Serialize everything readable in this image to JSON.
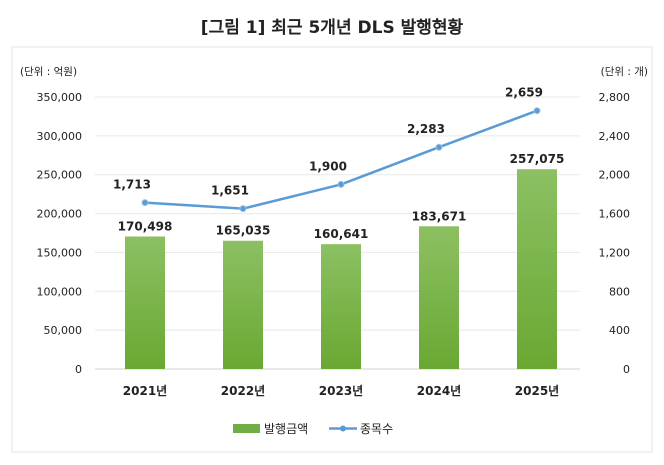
{
  "chart_data": {
    "type": "bar+line",
    "title": "[그림 1] 최근 5개년 DLS 발행현황",
    "left_unit": "(단위 : 억원)",
    "right_unit": "(단위 : 개)",
    "categories": [
      "2021년",
      "2022년",
      "2023년",
      "2024년",
      "2025년"
    ],
    "left_axis": {
      "range": [
        0,
        350000
      ],
      "ticks": [
        "0",
        "50,000",
        "100,000",
        "150,000",
        "200,000",
        "250,000",
        "300,000",
        "350,000"
      ],
      "tick_values": [
        0,
        50000,
        100000,
        150000,
        200000,
        250000,
        300000,
        350000
      ]
    },
    "right_axis": {
      "range": [
        0,
        2800
      ],
      "ticks": [
        "0",
        "400",
        "800",
        "1,200",
        "1,600",
        "2,000",
        "2,400",
        "2,800"
      ],
      "tick_values": [
        0,
        400,
        800,
        1200,
        1600,
        2000,
        2400,
        2800
      ]
    },
    "grid": true,
    "legend_placement": "bottom",
    "series": [
      {
        "name": "발행금액",
        "type": "bar",
        "axis": "left",
        "color": "#70ad47",
        "values": [
          170498,
          165035,
          160641,
          183671,
          257075
        ],
        "labels": [
          "170,498",
          "165,035",
          "160,641",
          "183,671",
          "257,075"
        ]
      },
      {
        "name": "종목수",
        "type": "line",
        "axis": "right",
        "color": "#5b9bd5",
        "values": [
          1713,
          1651,
          1900,
          2283,
          2659
        ],
        "labels": [
          "1,713",
          "1,651",
          "1,900",
          "2,283",
          "2,659"
        ]
      }
    ]
  }
}
